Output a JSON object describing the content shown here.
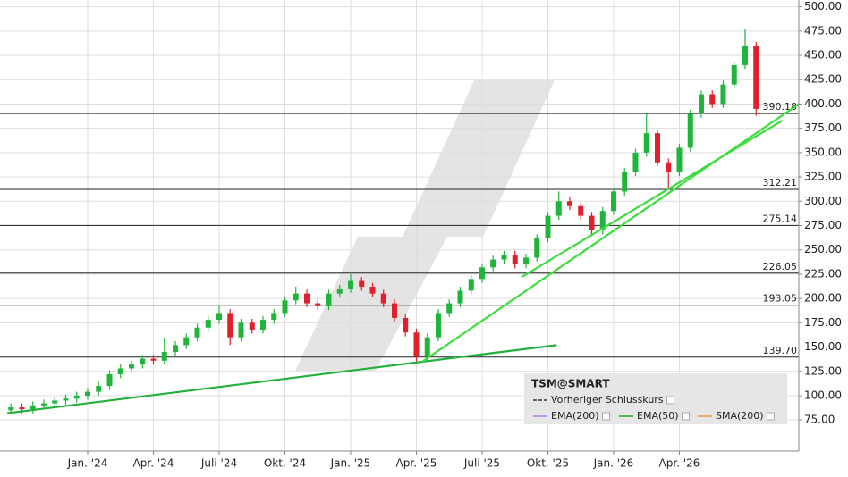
{
  "chart_data": {
    "type": "candlestick",
    "xlim": [
      -4,
      32.45
    ],
    "ylim": [
      43,
      507
    ],
    "xticks": [
      {
        "value": 0,
        "label": "Jan. '24"
      },
      {
        "value": 3,
        "label": "Apr. '24"
      },
      {
        "value": 6,
        "label": "Juli '24"
      },
      {
        "value": 9,
        "label": "Okt. '24"
      },
      {
        "value": 12,
        "label": "Jan. '25"
      },
      {
        "value": 15,
        "label": "Apr. '25"
      },
      {
        "value": 18,
        "label": "Juli '25"
      },
      {
        "value": 21,
        "label": "Okt. '25"
      },
      {
        "value": 24,
        "label": "Jan. '26"
      },
      {
        "value": 27,
        "label": "Apr. '26"
      }
    ],
    "yticks": [
      {
        "value": 75,
        "label": "75.00"
      },
      {
        "value": 100,
        "label": "100.00"
      },
      {
        "value": 125,
        "label": "125.00"
      },
      {
        "value": 150,
        "label": "150.00"
      },
      {
        "value": 175,
        "label": "175.00"
      },
      {
        "value": 200,
        "label": "200.00"
      },
      {
        "value": 225,
        "label": "225.00"
      },
      {
        "value": 250,
        "label": "250.00"
      },
      {
        "value": 275,
        "label": "275.00"
      },
      {
        "value": 300,
        "label": "300.00"
      },
      {
        "value": 325,
        "label": "325.00"
      },
      {
        "value": 350,
        "label": "350.00"
      },
      {
        "value": 375,
        "label": "375.00"
      },
      {
        "value": 400,
        "label": "400.00"
      },
      {
        "value": 425,
        "label": "425.00"
      },
      {
        "value": 450,
        "label": "450.00"
      },
      {
        "value": 475,
        "label": "475.00"
      },
      {
        "value": 500,
        "label": "500.00"
      }
    ],
    "grid": true,
    "up_color": "#1fb53a",
    "down_color": "#e0202a",
    "x": [
      -3.5,
      -3,
      -2.5,
      -2,
      -1.5,
      -1,
      -0.5,
      0,
      0.5,
      1,
      1.5,
      2,
      2.5,
      3,
      3.5,
      4,
      4.5,
      5,
      5.5,
      6,
      6.5,
      7,
      7.5,
      8,
      8.5,
      9,
      9.5,
      10,
      10.5,
      11,
      11.5,
      12,
      12.5,
      13,
      13.5,
      14,
      14.5,
      15,
      15.5,
      16,
      16.5,
      17,
      17.5,
      18,
      18.5,
      19,
      19.5,
      20,
      20.5,
      21,
      21.5,
      22,
      22.5,
      23,
      23.5,
      24,
      24.5,
      25,
      25.5,
      26,
      26.5,
      27,
      27.5,
      28,
      28.5,
      29,
      29.5,
      30,
      30.5
    ],
    "open": [
      85,
      88,
      86,
      90,
      92,
      95,
      97,
      100,
      104,
      110,
      122,
      128,
      132,
      138,
      136,
      145,
      152,
      160,
      170,
      178,
      185,
      160,
      175,
      168,
      178,
      185,
      198,
      205,
      195,
      192,
      205,
      210,
      218,
      212,
      205,
      195,
      180,
      165,
      140,
      160,
      185,
      195,
      208,
      220,
      232,
      240,
      245,
      235,
      242,
      262,
      285,
      300,
      295,
      285,
      270,
      290,
      310,
      330,
      350,
      370,
      340,
      330,
      355,
      390,
      410,
      400,
      420,
      440,
      460
    ],
    "high": [
      92,
      92,
      94,
      96,
      99,
      101,
      104,
      108,
      114,
      126,
      132,
      136,
      142,
      142,
      160,
      156,
      164,
      174,
      182,
      192,
      189,
      179,
      179,
      182,
      189,
      202,
      212,
      209,
      199,
      209,
      214,
      225,
      222,
      216,
      209,
      199,
      184,
      169,
      164,
      189,
      199,
      212,
      224,
      236,
      244,
      249,
      249,
      246,
      266,
      289,
      310,
      305,
      299,
      289,
      294,
      314,
      334,
      354,
      390,
      374,
      344,
      359,
      394,
      414,
      414,
      424,
      444,
      477,
      464
    ],
    "low": [
      81,
      82,
      82,
      86,
      88,
      91,
      93,
      96,
      100,
      106,
      118,
      124,
      128,
      132,
      132,
      141,
      148,
      156,
      166,
      174,
      152,
      156,
      164,
      164,
      174,
      181,
      194,
      191,
      188,
      188,
      201,
      206,
      208,
      201,
      191,
      176,
      161,
      133,
      136,
      156,
      181,
      191,
      204,
      216,
      228,
      236,
      231,
      231,
      238,
      258,
      281,
      291,
      281,
      266,
      266,
      286,
      306,
      326,
      346,
      336,
      312,
      326,
      351,
      386,
      396,
      396,
      416,
      436,
      388
    ],
    "close": [
      88,
      86,
      90,
      92,
      95,
      97,
      100,
      104,
      110,
      122,
      128,
      132,
      138,
      136,
      145,
      152,
      160,
      170,
      178,
      185,
      160,
      175,
      168,
      178,
      185,
      198,
      205,
      195,
      192,
      205,
      210,
      218,
      212,
      205,
      195,
      180,
      165,
      140,
      160,
      185,
      195,
      208,
      220,
      232,
      240,
      245,
      235,
      242,
      262,
      285,
      300,
      295,
      285,
      270,
      290,
      310,
      330,
      350,
      370,
      340,
      330,
      355,
      390,
      410,
      400,
      420,
      440,
      460,
      395
    ],
    "levels": [
      390.18,
      312.21,
      275.14,
      226.05,
      193.05,
      {
        "value": 139.7,
        "label": "139.70"
      }
    ],
    "trendlines": [
      {
        "x": [
          -3.67,
          21.4
        ],
        "y": [
          82,
          152
        ],
        "color": "#22b03c"
      },
      {
        "x": [
          15.27,
          32.45
        ],
        "y": [
          135,
          400
        ],
        "color": "#3ddc3d"
      },
      {
        "x": [
          19.8,
          31.7
        ],
        "y": [
          222,
          383
        ],
        "color": "#3ddc3d"
      }
    ],
    "legend": {
      "title": "TSM@SMART",
      "items": [
        {
          "name": "Vorheriger Schlusskurs",
          "color": "#333333"
        },
        {
          "name": "EMA(200)",
          "color": "#b07ce8"
        },
        {
          "name": "EMA(50)",
          "color": "#22aa22"
        },
        {
          "name": "SMA(200)",
          "color": "#e0a040"
        }
      ]
    }
  }
}
